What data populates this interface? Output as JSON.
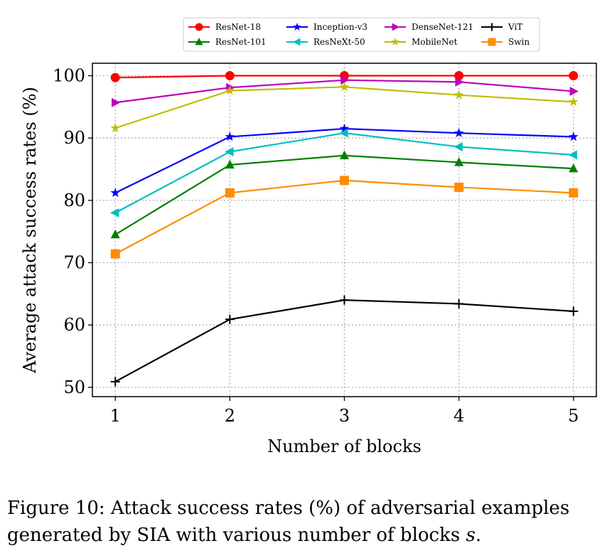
{
  "chart_data": {
    "type": "line",
    "title": "",
    "xlabel": "Number of blocks",
    "ylabel": "Average attack success rates (%)",
    "x": [
      1,
      2,
      3,
      4,
      5
    ],
    "xlim": [
      0.8,
      5.2
    ],
    "ylim": [
      48.5,
      102
    ],
    "yticks": [
      50,
      60,
      70,
      80,
      90,
      100
    ],
    "grid": true,
    "legend_position": "top",
    "series": [
      {
        "name": "ResNet-18",
        "color": "#ff0000",
        "marker": "circle",
        "values": [
          99.7,
          100.0,
          100.0,
          100.0,
          100.0
        ]
      },
      {
        "name": "ResNet-101",
        "color": "#008000",
        "marker": "triangle-up",
        "values": [
          74.5,
          85.7,
          87.2,
          86.1,
          85.1
        ]
      },
      {
        "name": "Inception-v3",
        "color": "#0000ff",
        "marker": "star",
        "values": [
          81.2,
          90.2,
          91.5,
          90.8,
          90.2
        ]
      },
      {
        "name": "ResNeXt-50",
        "color": "#00bfbf",
        "marker": "triangle-left",
        "values": [
          78.0,
          87.8,
          90.8,
          88.6,
          87.3
        ]
      },
      {
        "name": "DenseNet-121",
        "color": "#bf00bf",
        "marker": "triangle-right",
        "values": [
          95.7,
          98.1,
          99.3,
          99.0,
          97.5
        ]
      },
      {
        "name": "MobileNet",
        "color": "#bfbf00",
        "marker": "star",
        "values": [
          91.6,
          97.6,
          98.2,
          96.9,
          95.8
        ]
      },
      {
        "name": "ViT",
        "color": "#000000",
        "marker": "plus",
        "values": [
          50.9,
          60.9,
          64.0,
          63.4,
          62.2
        ]
      },
      {
        "name": "Swin",
        "color": "#ff8c00",
        "marker": "square",
        "values": [
          71.4,
          81.2,
          83.2,
          82.1,
          81.2
        ]
      }
    ]
  },
  "caption": {
    "prefix": "Figure 10: Attack success rates (%) of adversarial examples generated by SIA with various number of blocks ",
    "variable": "s",
    "suffix": "."
  }
}
